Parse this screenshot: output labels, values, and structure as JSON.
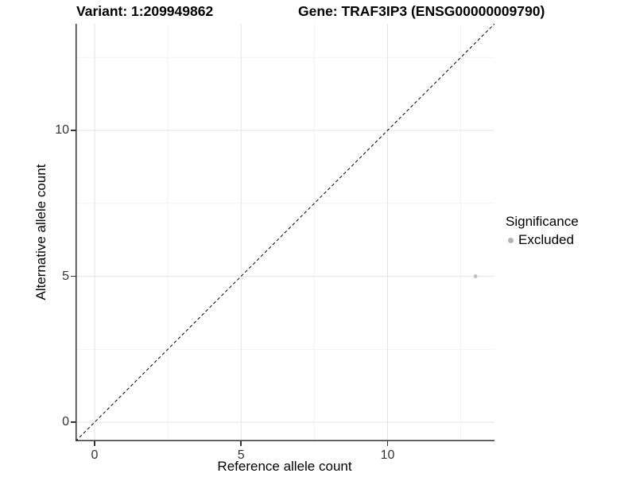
{
  "chart_data": {
    "type": "scatter",
    "titles": {
      "left": "Variant: 1:209949862",
      "right": "Gene: TRAF3IP3 (ENSG00000009790)"
    },
    "xlabel": "Reference allele count",
    "ylabel": "Alternative allele count",
    "xlim": [
      -0.65,
      13.65
    ],
    "ylim": [
      -0.65,
      13.65
    ],
    "x_ticks": [
      0,
      5,
      10
    ],
    "y_ticks": [
      0,
      5,
      10
    ],
    "x_minor_ticks": [
      2.5,
      7.5,
      12.5
    ],
    "y_minor_ticks": [
      2.5,
      7.5,
      12.5
    ],
    "grid": "major and minor gridlines on white panel",
    "points": [
      {
        "x": 13,
        "y": 5,
        "series": "Excluded"
      }
    ],
    "reference_line": {
      "kind": "identity y=x",
      "style": "dashed"
    },
    "legend": {
      "title": "Significance",
      "position": "right",
      "items": [
        {
          "label": "Excluded",
          "marker": "circle"
        }
      ]
    }
  },
  "colors": {
    "background": "#ffffff",
    "title_text": "#000000",
    "axis_line": "#333333",
    "tick_label": "#333333",
    "grid_major": "#e4e4e4",
    "grid_minor": "#f2f2f2",
    "reference_line": "#000000",
    "point_excluded": "#c0c0c0",
    "legend_marker": "#b3b3b3"
  }
}
